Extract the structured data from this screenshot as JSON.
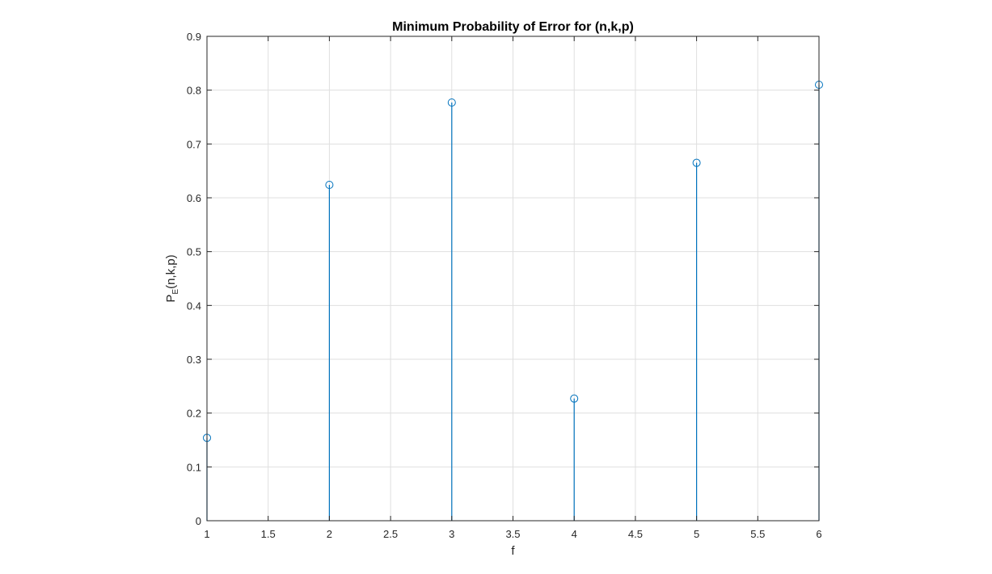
{
  "chart_data": {
    "type": "stem",
    "title": "Minimum Probability of Error for (n,k,p)",
    "xlabel": "f",
    "ylabel_main": "P",
    "ylabel_sub": "E",
    "ylabel_rest": "(n,k,p)",
    "xlim": [
      1,
      6
    ],
    "ylim": [
      0,
      0.9
    ],
    "xticks": [
      1,
      1.5,
      2,
      2.5,
      3,
      3.5,
      4,
      4.5,
      5,
      5.5,
      6
    ],
    "xtick_labels": [
      "1",
      "1.5",
      "2",
      "2.5",
      "3",
      "3.5",
      "4",
      "4.5",
      "5",
      "5.5",
      "6"
    ],
    "yticks": [
      0,
      0.1,
      0.2,
      0.3,
      0.4,
      0.5,
      0.6,
      0.7,
      0.8,
      0.9
    ],
    "ytick_labels": [
      "0",
      "0.1",
      "0.2",
      "0.3",
      "0.4",
      "0.5",
      "0.6",
      "0.7",
      "0.8",
      "0.9"
    ],
    "grid": true,
    "x": [
      1,
      2,
      3,
      4,
      5,
      6
    ],
    "values": [
      0.154,
      0.624,
      0.777,
      0.227,
      0.665,
      0.81
    ],
    "stem_color": "#0072BD",
    "marker": "circle-open"
  }
}
